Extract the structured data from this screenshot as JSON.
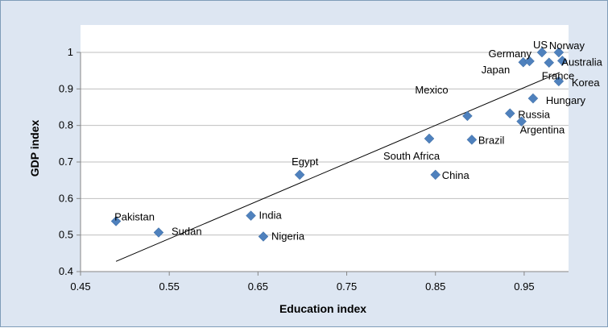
{
  "chart_data": {
    "type": "scatter",
    "title": "",
    "xlabel": "Education index",
    "ylabel": "GDP index",
    "xlim": [
      0.45,
      1.0
    ],
    "ylim": [
      0.4,
      1.0
    ],
    "x_ticks": [
      "0.45",
      "0.55",
      "0.65",
      "0.75",
      "0.85",
      "0.95"
    ],
    "y_ticks": [
      "0.4",
      "0.5",
      "0.6",
      "0.7",
      "0.8",
      "0.9",
      "1"
    ],
    "grid": "horizontal",
    "legend": "none",
    "marker_color": "#4f81bd",
    "trendline": {
      "x": [
        0.49,
        0.99
      ],
      "y": [
        0.428,
        0.945
      ]
    },
    "points": [
      {
        "label": "Pakistan",
        "x": 0.49,
        "y": 0.538
      },
      {
        "label": "Sudan",
        "x": 0.538,
        "y": 0.507
      },
      {
        "label": "India",
        "x": 0.642,
        "y": 0.553
      },
      {
        "label": "Nigeria",
        "x": 0.656,
        "y": 0.496
      },
      {
        "label": "Egypt",
        "x": 0.697,
        "y": 0.665
      },
      {
        "label": "South Africa",
        "x": 0.843,
        "y": 0.764
      },
      {
        "label": "China",
        "x": 0.85,
        "y": 0.665
      },
      {
        "label": "Mexico",
        "x": 0.886,
        "y": 0.826
      },
      {
        "label": "Brazil",
        "x": 0.891,
        "y": 0.761
      },
      {
        "label": "Russia",
        "x": 0.934,
        "y": 0.833
      },
      {
        "label": "Argentina",
        "x": 0.947,
        "y": 0.811
      },
      {
        "label": "Hungary",
        "x": 0.96,
        "y": 0.874
      },
      {
        "label": "Korea",
        "x": 0.989,
        "y": 0.921
      },
      {
        "label": "Japan",
        "x": 0.949,
        "y": 0.973
      },
      {
        "label": "Germany",
        "x": 0.956,
        "y": 0.976
      },
      {
        "label": "US",
        "x": 0.97,
        "y": 1.0
      },
      {
        "label": "France",
        "x": 0.978,
        "y": 0.972
      },
      {
        "label": "Norway",
        "x": 0.989,
        "y": 1.0
      },
      {
        "label": "Australia",
        "x": 0.993,
        "y": 0.977
      }
    ]
  }
}
